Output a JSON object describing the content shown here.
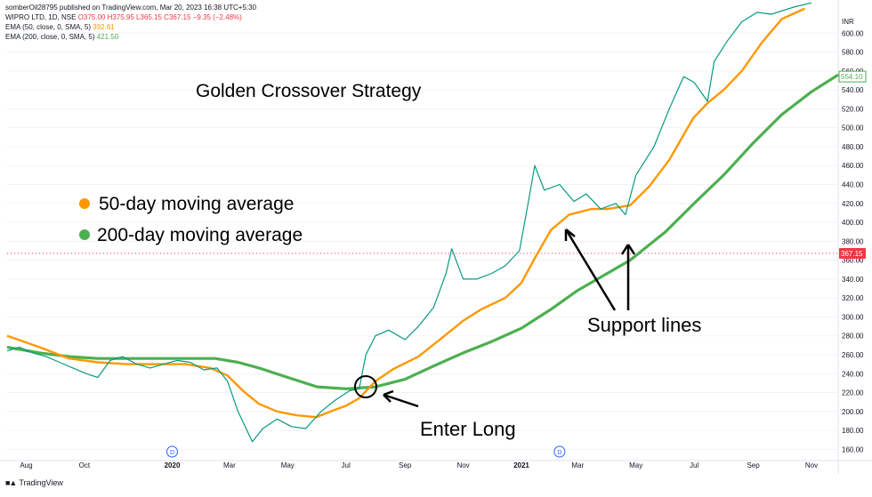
{
  "header": {
    "published": "somberOil28795 published on TradingView.com, Mar 20, 2023 16:38 UTC+5:30",
    "symbol": "WIPRO LTD, 1D, NSE",
    "ohlc": "O375.00 H375.95 L365.15 C367.15 −9.35 (−2.48%)",
    "ema50_label": "EMA (50, close, 0, SMA, 5)",
    "ema50_value": "392.61",
    "ema200_label": "EMA (200, close, 0, SMA, 5)",
    "ema200_value": "421.50"
  },
  "brand": {
    "name": "TradingView",
    "logo_icon": "tradingview-logo-icon"
  },
  "annotations": {
    "strategy_title": "Golden Crossover Strategy",
    "legend": [
      {
        "label": "50-day moving average",
        "color": "#ff9800"
      },
      {
        "label": "200-day moving average",
        "color": "#4caf50"
      }
    ],
    "enter_long": "Enter Long",
    "support_lines": "Support lines"
  },
  "chart_data": {
    "type": "line",
    "price_axis": {
      "currency": "INR",
      "ticks": [
        160,
        180,
        200,
        220,
        240,
        260,
        280,
        300,
        320,
        340,
        360,
        380,
        400,
        420,
        440,
        460,
        480,
        500,
        520,
        540,
        560,
        580,
        600
      ],
      "range": [
        150,
        620
      ]
    },
    "time_axis": {
      "ticks": [
        "Aug",
        "Oct",
        "2020",
        "Mar",
        "May",
        "Jul",
        "Sep",
        "Nov",
        "2021",
        "Mar",
        "May",
        "Jul",
        "Sep",
        "Nov"
      ],
      "range": [
        "2019-07-12",
        "2021-11-29"
      ]
    },
    "last_price_label": "367.15",
    "ema200_right_label": "554.10",
    "dividend_markers": [
      {
        "date": "2020-01-01",
        "label": "D"
      },
      {
        "date": "2021-02-10",
        "label": "D"
      }
    ],
    "series": [
      {
        "name": "EMA 50",
        "color": "#ff9800",
        "points": [
          [
            "2019-07-12",
            280
          ],
          [
            "2019-08-15",
            268
          ],
          [
            "2019-09-15",
            256
          ],
          [
            "2019-10-15",
            252
          ],
          [
            "2019-11-15",
            250
          ],
          [
            "2019-12-15",
            250
          ],
          [
            "2020-01-15",
            250
          ],
          [
            "2020-02-10",
            246
          ],
          [
            "2020-02-28",
            238
          ],
          [
            "2020-03-15",
            222
          ],
          [
            "2020-04-01",
            208
          ],
          [
            "2020-04-20",
            200
          ],
          [
            "2020-05-10",
            196
          ],
          [
            "2020-05-31",
            194
          ],
          [
            "2020-06-15",
            200
          ],
          [
            "2020-07-01",
            206
          ],
          [
            "2020-07-15",
            214
          ],
          [
            "2020-08-01",
            232
          ],
          [
            "2020-08-20",
            245
          ],
          [
            "2020-09-15",
            258
          ],
          [
            "2020-10-10",
            278
          ],
          [
            "2020-11-01",
            296
          ],
          [
            "2020-11-20",
            308
          ],
          [
            "2020-12-15",
            320
          ],
          [
            "2021-01-01",
            336
          ],
          [
            "2021-01-15",
            362
          ],
          [
            "2021-02-01",
            392
          ],
          [
            "2021-02-20",
            408
          ],
          [
            "2021-03-15",
            414
          ],
          [
            "2021-04-01",
            414
          ],
          [
            "2021-04-25",
            418
          ],
          [
            "2021-05-15",
            438
          ],
          [
            "2021-06-05",
            466
          ],
          [
            "2021-06-30",
            510
          ],
          [
            "2021-07-15",
            526
          ],
          [
            "2021-08-01",
            540
          ],
          [
            "2021-08-20",
            560
          ],
          [
            "2021-09-10",
            590
          ],
          [
            "2021-10-01",
            615
          ],
          [
            "2021-10-25",
            626
          ]
        ]
      },
      {
        "name": "EMA 200",
        "color": "#4caf50",
        "points": [
          [
            "2019-07-12",
            268
          ],
          [
            "2019-08-15",
            262
          ],
          [
            "2019-09-15",
            258
          ],
          [
            "2019-10-15",
            256
          ],
          [
            "2019-11-15",
            256
          ],
          [
            "2019-12-15",
            256
          ],
          [
            "2020-01-15",
            256
          ],
          [
            "2020-02-15",
            256
          ],
          [
            "2020-03-10",
            252
          ],
          [
            "2020-04-01",
            246
          ],
          [
            "2020-05-01",
            236
          ],
          [
            "2020-06-01",
            226
          ],
          [
            "2020-07-01",
            224
          ],
          [
            "2020-08-01",
            226
          ],
          [
            "2020-09-01",
            234
          ],
          [
            "2020-10-01",
            248
          ],
          [
            "2020-11-01",
            262
          ],
          [
            "2020-12-01",
            274
          ],
          [
            "2021-01-01",
            288
          ],
          [
            "2021-02-01",
            308
          ],
          [
            "2021-03-01",
            328
          ],
          [
            "2021-04-01",
            346
          ],
          [
            "2021-04-25",
            360
          ],
          [
            "2021-06-01",
            390
          ],
          [
            "2021-07-01",
            420
          ],
          [
            "2021-08-01",
            450
          ],
          [
            "2021-09-01",
            484
          ],
          [
            "2021-10-01",
            514
          ],
          [
            "2021-11-01",
            538
          ],
          [
            "2021-11-29",
            556
          ]
        ]
      },
      {
        "name": "Price",
        "color": "#089981",
        "points": [
          [
            "2019-07-12",
            264
          ],
          [
            "2019-07-25",
            268
          ],
          [
            "2019-08-08",
            262
          ],
          [
            "2019-08-22",
            258
          ],
          [
            "2019-09-05",
            252
          ],
          [
            "2019-09-19",
            246
          ],
          [
            "2019-10-03",
            240
          ],
          [
            "2019-10-15",
            236
          ],
          [
            "2019-10-28",
            254
          ],
          [
            "2019-11-10",
            258
          ],
          [
            "2019-11-25",
            250
          ],
          [
            "2019-12-09",
            246
          ],
          [
            "2019-12-23",
            250
          ],
          [
            "2020-01-06",
            254
          ],
          [
            "2020-01-20",
            252
          ],
          [
            "2020-02-03",
            244
          ],
          [
            "2020-02-17",
            246
          ],
          [
            "2020-02-28",
            232
          ],
          [
            "2020-03-10",
            200
          ],
          [
            "2020-03-25",
            168
          ],
          [
            "2020-04-05",
            182
          ],
          [
            "2020-04-20",
            192
          ],
          [
            "2020-05-05",
            184
          ],
          [
            "2020-05-20",
            182
          ],
          [
            "2020-06-05",
            200
          ],
          [
            "2020-06-20",
            212
          ],
          [
            "2020-07-05",
            222
          ],
          [
            "2020-07-15",
            224
          ],
          [
            "2020-07-22",
            260
          ],
          [
            "2020-08-01",
            280
          ],
          [
            "2020-08-15",
            286
          ],
          [
            "2020-09-01",
            276
          ],
          [
            "2020-09-15",
            290
          ],
          [
            "2020-10-01",
            310
          ],
          [
            "2020-10-14",
            346
          ],
          [
            "2020-10-20",
            372
          ],
          [
            "2020-11-01",
            340
          ],
          [
            "2020-11-15",
            340
          ],
          [
            "2020-12-01",
            346
          ],
          [
            "2020-12-15",
            354
          ],
          [
            "2020-12-30",
            370
          ],
          [
            "2021-01-08",
            420
          ],
          [
            "2021-01-15",
            460
          ],
          [
            "2021-01-25",
            434
          ],
          [
            "2021-02-10",
            440
          ],
          [
            "2021-02-25",
            422
          ],
          [
            "2021-03-10",
            430
          ],
          [
            "2021-03-25",
            414
          ],
          [
            "2021-04-10",
            420
          ],
          [
            "2021-04-20",
            408
          ],
          [
            "2021-05-01",
            450
          ],
          [
            "2021-05-20",
            480
          ],
          [
            "2021-06-05",
            520
          ],
          [
            "2021-06-20",
            554
          ],
          [
            "2021-07-01",
            548
          ],
          [
            "2021-07-15",
            528
          ],
          [
            "2021-07-22",
            570
          ],
          [
            "2021-08-05",
            592
          ],
          [
            "2021-08-20",
            612
          ],
          [
            "2021-09-05",
            622
          ],
          [
            "2021-09-20",
            620
          ],
          [
            "2021-10-15",
            628
          ],
          [
            "2021-11-01",
            632
          ]
        ]
      }
    ]
  }
}
